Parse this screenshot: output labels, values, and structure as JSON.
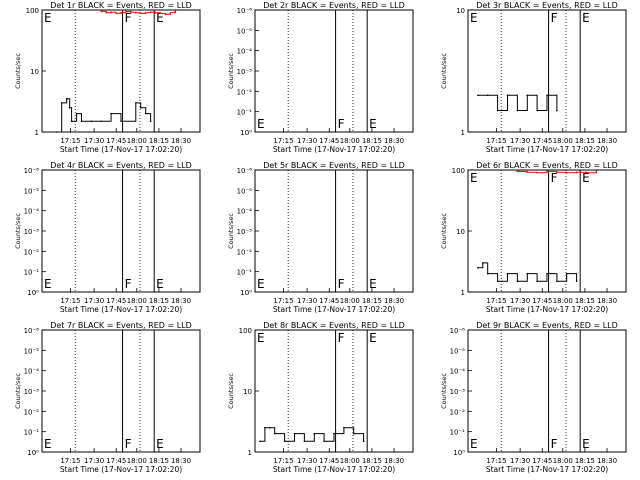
{
  "xtick_labels": [
    "17:15",
    "17:30",
    "17:45",
    "18:00",
    "18:15",
    "18:30"
  ],
  "xlabel": "Start Time (17-Nov-17 17:02:20)",
  "ylabel": "Counts/sec",
  "marker_F": "F",
  "marker_E": "E",
  "panels": [
    {
      "title": "Det 1r BLACK = Events, RED = LLD",
      "yticks": [
        "1",
        "10",
        "100"
      ],
      "chart_data": {
        "type": "line",
        "scale": "log",
        "ylim": [
          1,
          100
        ],
        "series": [
          {
            "name": "Events",
            "color": "#000000",
            "x": [
              17.15,
              17.2,
              17.25,
              17.28,
              17.3,
              17.35,
              17.4,
              17.5,
              17.6,
              17.7,
              17.8,
              17.95,
              18.0,
              18.05,
              18.1
            ],
            "y": [
              1,
              3,
              3.5,
              2.5,
              1.5,
              2,
              1.5,
              1.5,
              1.5,
              2,
              1.5,
              3,
              2.5,
              2,
              1.5
            ]
          },
          {
            "name": "LLD",
            "color": "#ff0000",
            "x": [
              17.6,
              17.65,
              17.7,
              17.75,
              17.8,
              17.85,
              17.9,
              17.95,
              18.0,
              18.05,
              18.1,
              18.15,
              18.2,
              18.25,
              18.3,
              18.35
            ],
            "y": [
              95,
              90,
              92,
              88,
              90,
              95,
              92,
              90,
              88,
              90,
              92,
              90,
              88,
              85,
              90,
              95
            ]
          }
        ]
      }
    },
    {
      "title": "Det 2r BLACK = Events, RED = LLD",
      "yticks": [
        "10⁰",
        "10⁻¹",
        "10⁻²",
        "10⁻³",
        "10⁻⁴",
        "10⁻⁵",
        "10⁻⁶"
      ],
      "chart_data": {
        "type": "line",
        "series": []
      }
    },
    {
      "title": "Det 3r BLACK = Events, RED = LLD",
      "yticks": [
        "1",
        "10"
      ],
      "chart_data": {
        "type": "line",
        "scale": "log",
        "ylim": [
          1,
          10
        ],
        "series": [
          {
            "name": "Events",
            "color": "#000000",
            "x": [
              17.1,
              17.2,
              17.3,
              17.4,
              17.5,
              17.6,
              17.7,
              17.8,
              17.9
            ],
            "y": [
              2,
              2,
              1.5,
              2,
              1.5,
              2,
              1.5,
              2,
              1.5
            ]
          }
        ]
      }
    },
    {
      "title": "Det 4r BLACK = Events, RED = LLD",
      "yticks": [
        "10⁰",
        "10⁻¹",
        "10⁻²",
        "10⁻³",
        "10⁻⁴",
        "10⁻⁵",
        "10⁻⁶"
      ],
      "chart_data": {
        "type": "line",
        "series": []
      }
    },
    {
      "title": "Det 5r BLACK = Events, RED = LLD",
      "yticks": [
        "10⁰",
        "10⁻¹",
        "10⁻²",
        "10⁻³",
        "10⁻⁴",
        "10⁻⁵",
        "10⁻⁶"
      ],
      "chart_data": {
        "type": "line",
        "series": []
      }
    },
    {
      "title": "Det 6r BLACK = Events, RED = LLD",
      "yticks": [
        "1",
        "10",
        "100"
      ],
      "chart_data": {
        "type": "line",
        "scale": "log",
        "ylim": [
          1,
          100
        ],
        "series": [
          {
            "name": "Events",
            "color": "#000000",
            "x": [
              17.1,
              17.15,
              17.2,
              17.3,
              17.4,
              17.5,
              17.6,
              17.7,
              17.8,
              17.9,
              18.0,
              18.1
            ],
            "y": [
              2.5,
              3,
              2,
              1.5,
              2,
              1.5,
              2,
              1.5,
              2,
              1.5,
              2,
              1.5
            ]
          },
          {
            "name": "LLD",
            "color": "#ff0000",
            "x": [
              17.5,
              17.6,
              17.7,
              17.8,
              17.9,
              18.0,
              18.1,
              18.2,
              18.3
            ],
            "y": [
              95,
              92,
              90,
              95,
              92,
              90,
              92,
              90,
              95
            ]
          }
        ]
      }
    },
    {
      "title": "Det 7r BLACK = Events, RED = LLD",
      "yticks": [
        "10⁰",
        "10⁻¹",
        "10⁻²",
        "10⁻³",
        "10⁻⁴",
        "10⁻⁵",
        "10⁻⁶"
      ],
      "chart_data": {
        "type": "line",
        "series": []
      }
    },
    {
      "title": "Det 8r BLACK = Events, RED = LLD",
      "yticks": [
        "1",
        "10",
        "100"
      ],
      "chart_data": {
        "type": "line",
        "scale": "log",
        "ylim": [
          1,
          100
        ],
        "series": [
          {
            "name": "Events",
            "color": "#000000",
            "x": [
              17.05,
              17.1,
              17.15,
              17.2,
              17.3,
              17.4,
              17.5,
              17.6,
              17.7,
              17.8,
              17.9,
              18.0,
              18.1
            ],
            "y": [
              1.5,
              2.5,
              2.5,
              2,
              1.5,
              2,
              1.5,
              2,
              1.5,
              2,
              2.5,
              2,
              1.5
            ]
          }
        ]
      }
    },
    {
      "title": "Det 9r BLACK = Events, RED = LLD",
      "yticks": [
        "10⁰",
        "10⁻¹",
        "10⁻²",
        "10⁻³",
        "10⁻⁴",
        "10⁻⁵",
        "10⁻⁶"
      ],
      "chart_data": {
        "type": "line",
        "series": []
      }
    }
  ]
}
